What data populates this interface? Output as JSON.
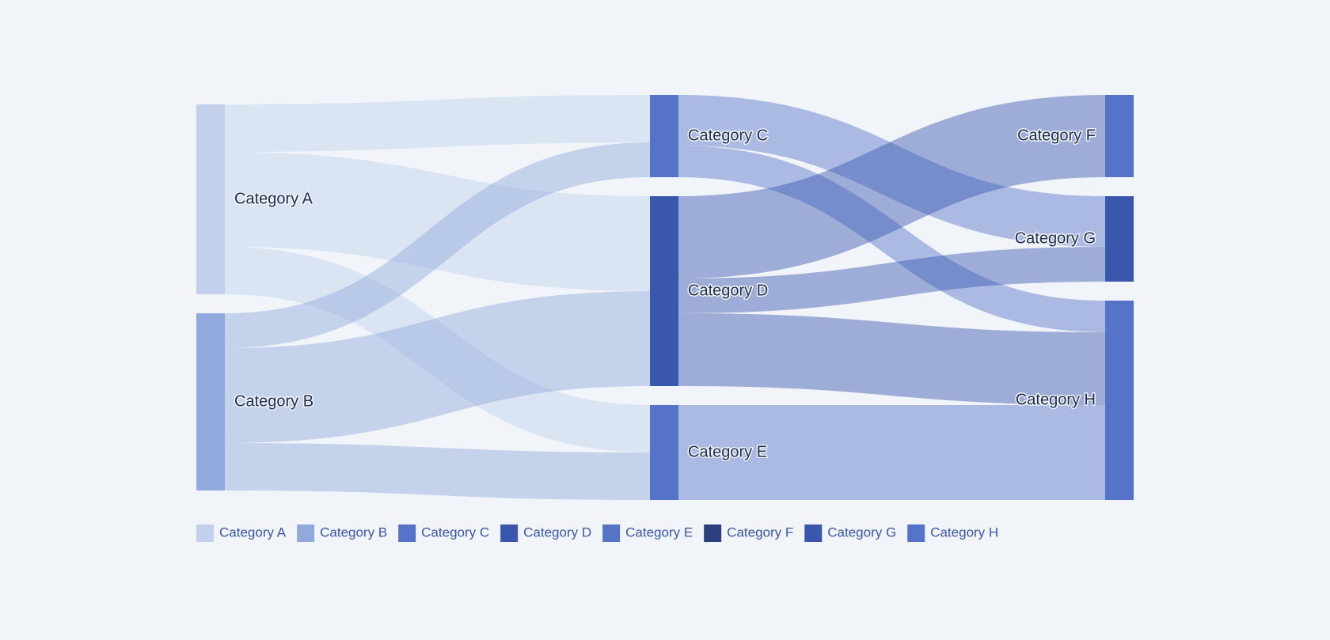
{
  "chart_data": {
    "type": "sankey",
    "title": "",
    "colors": {
      "background": "#f1f4f9",
      "legend_text": "#3a55a8",
      "label_text": "#1f2d4d"
    },
    "nodes": [
      {
        "id": "A",
        "name": "Category A",
        "column": 0,
        "color": "#c2d0ec"
      },
      {
        "id": "B",
        "name": "Category B",
        "column": 0,
        "color": "#91a9dc"
      },
      {
        "id": "C",
        "name": "Category C",
        "column": 1,
        "color": "#5573c8"
      },
      {
        "id": "D",
        "name": "Category D",
        "column": 1,
        "color": "#3957ad"
      },
      {
        "id": "E",
        "name": "Category E",
        "column": 1,
        "color": "#5573c8"
      },
      {
        "id": "F",
        "name": "Category F",
        "column": 2,
        "color": "#5573c8"
      },
      {
        "id": "G",
        "name": "Category G",
        "column": 2,
        "color": "#3957ad"
      },
      {
        "id": "H",
        "name": "Category H",
        "column": 2,
        "color": "#5573c8"
      }
    ],
    "links": [
      {
        "source": "A",
        "target": "C",
        "value": 15
      },
      {
        "source": "A",
        "target": "D",
        "value": 30
      },
      {
        "source": "A",
        "target": "E",
        "value": 15
      },
      {
        "source": "B",
        "target": "C",
        "value": 11
      },
      {
        "source": "B",
        "target": "D",
        "value": 30
      },
      {
        "source": "B",
        "target": "E",
        "value": 15
      },
      {
        "source": "C",
        "target": "G",
        "value": 16
      },
      {
        "source": "C",
        "target": "H",
        "value": 10
      },
      {
        "source": "D",
        "target": "F",
        "value": 26
      },
      {
        "source": "D",
        "target": "G",
        "value": 11
      },
      {
        "source": "D",
        "target": "H",
        "value": 23
      },
      {
        "source": "E",
        "target": "H",
        "value": 30
      }
    ],
    "legend": {
      "position": "bottom-left",
      "items": [
        {
          "label": "Category A",
          "color": "#c2d0ec"
        },
        {
          "label": "Category B",
          "color": "#91a9dc"
        },
        {
          "label": "Category C",
          "color": "#5573c8"
        },
        {
          "label": "Category D",
          "color": "#3957ad"
        },
        {
          "label": "Category E",
          "color": "#5573c8"
        },
        {
          "label": "Category F",
          "color": "#2c4080"
        },
        {
          "label": "Category G",
          "color": "#3957ad"
        },
        {
          "label": "Category H",
          "color": "#5573c8"
        }
      ]
    }
  }
}
